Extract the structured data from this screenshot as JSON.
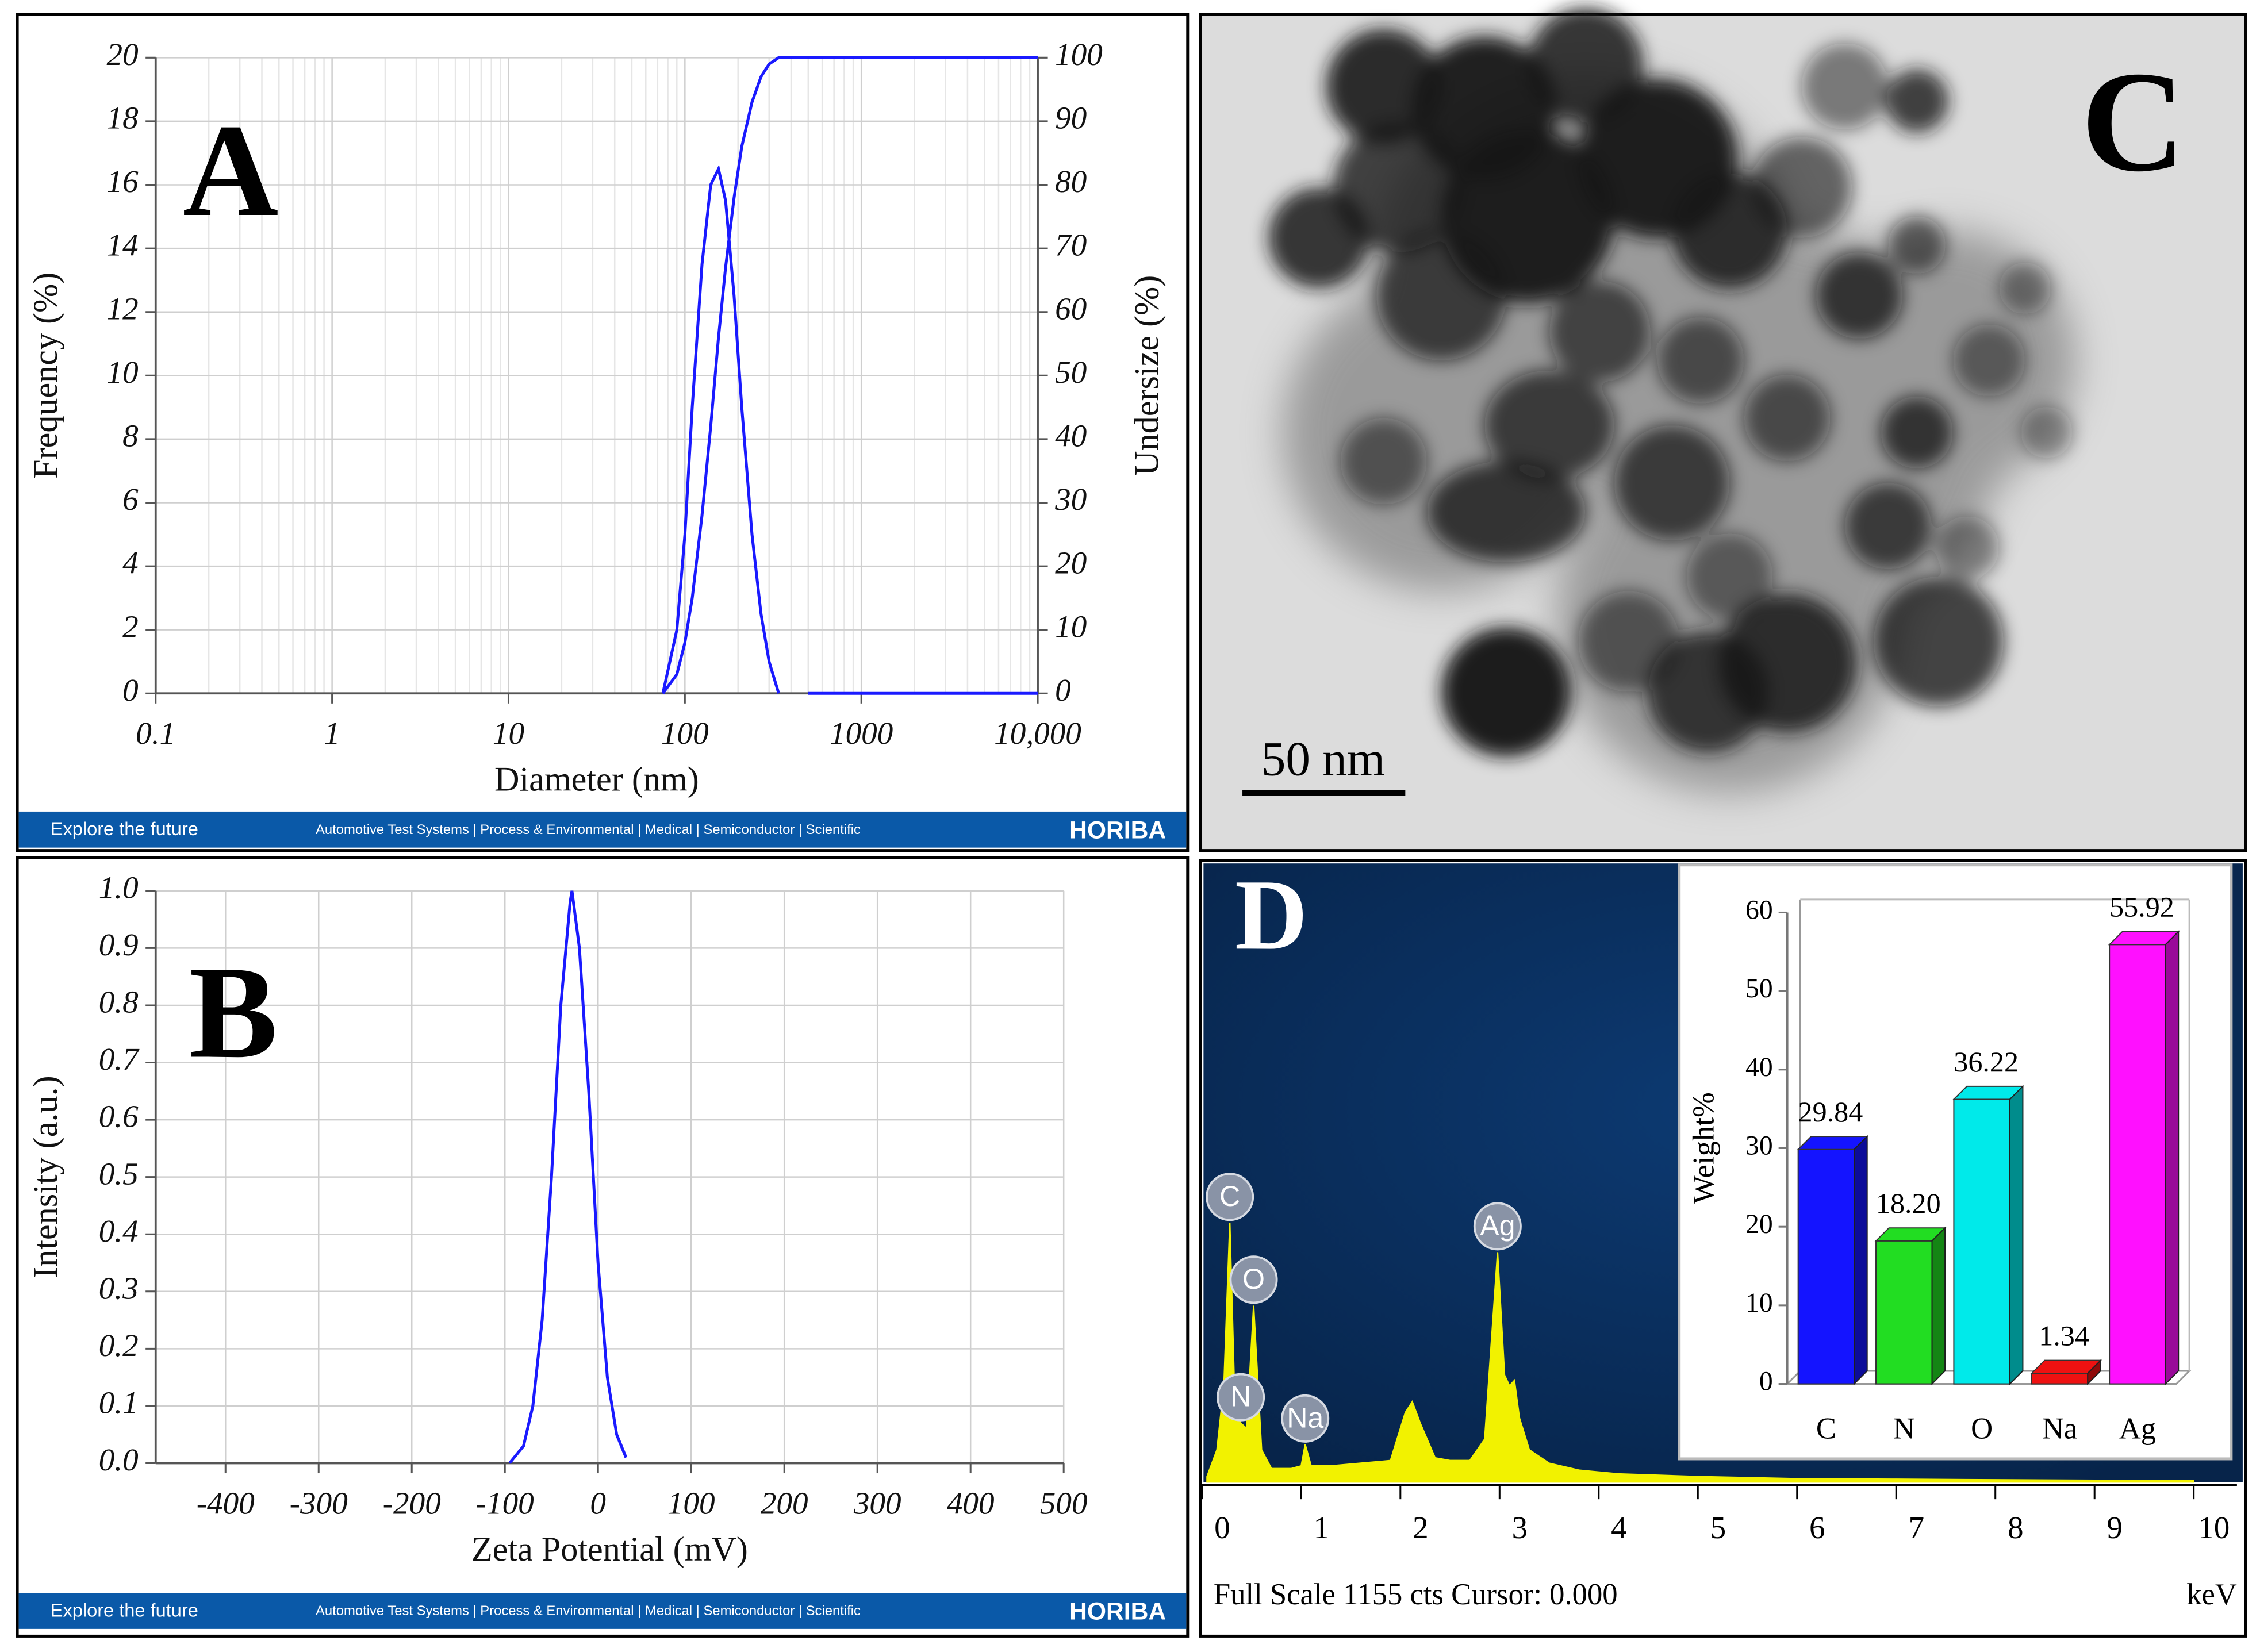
{
  "chart_data": [
    {
      "type": "line",
      "panel_label": "A",
      "xlabel": "Diameter (nm)",
      "ylabel": "Frequency (%)",
      "y2label": "Undersize (%)",
      "xlog": true,
      "grid": true,
      "x": [
        75,
        90,
        100,
        110,
        125,
        140,
        155,
        170,
        190,
        210,
        240,
        270,
        300,
        340,
        400,
        500,
        10000
      ],
      "series": [
        {
          "color": "#1a1aff",
          "values": [
            0,
            2,
            5,
            9,
            13.5,
            16,
            16.5,
            15.5,
            12.5,
            9,
            5,
            2.5,
            1,
            0,
            null,
            0,
            0
          ]
        },
        {
          "color": "#1a1aff",
          "axis": "y2",
          "values": [
            0,
            3,
            8,
            15,
            28,
            42,
            56,
            67,
            78,
            86,
            93,
            97,
            99,
            100,
            100,
            100,
            100
          ]
        }
      ],
      "xlim": [
        0.1,
        10000
      ],
      "xticks": [
        0.1,
        1,
        10,
        100,
        1000,
        {
          "value": 10000,
          "label": "10,000"
        }
      ],
      "ylim": [
        0,
        20
      ],
      "yticks": [
        0,
        2,
        4,
        6,
        8,
        10,
        12,
        14,
        16,
        18,
        20
      ],
      "y2lim": [
        0,
        100
      ],
      "y2ticks": [
        0,
        10,
        20,
        30,
        40,
        50,
        60,
        70,
        80,
        90,
        100
      ],
      "banner": {
        "left": "Explore the future",
        "middle": "Automotive Test Systems  |  Process & Environmental  |  Medical  |  Semiconductor  |  Scientific",
        "brand": "HORIBA"
      }
    },
    {
      "type": "line",
      "panel_label": "B",
      "xlabel": "Zeta Potential (mV)",
      "ylabel": "Intensity (a.u.)",
      "grid": true,
      "x": [
        -95,
        -80,
        -70,
        -60,
        -50,
        -40,
        -30,
        -28,
        -20,
        -10,
        0,
        10,
        20,
        30
      ],
      "series": [
        {
          "color": "#1a1aff",
          "values": [
            0,
            0.03,
            0.1,
            0.25,
            0.5,
            0.8,
            0.98,
            1,
            0.9,
            0.65,
            0.35,
            0.15,
            0.05,
            0.01
          ]
        }
      ],
      "xlim": [
        -475,
        500
      ],
      "xticks": [
        -400,
        -300,
        -200,
        -100,
        0,
        100,
        200,
        300,
        400,
        500
      ],
      "ylim": [
        0,
        1
      ],
      "yticks": [
        {
          "value": 0,
          "label": "0.0"
        },
        0.1,
        0.2,
        0.3,
        0.4,
        0.5,
        0.6,
        0.7,
        0.8,
        0.9,
        {
          "value": 1,
          "label": "1.0"
        }
      ],
      "banner": {
        "left": "Explore the future",
        "middle": "Automotive Test Systems  |  Process & Environmental  |  Medical  |  Semiconductor  |  Scientific",
        "brand": "HORIBA"
      }
    },
    {
      "type": "area",
      "panel_label": "D",
      "xlabel": "keV",
      "footer": "Full Scale 1155 cts Cursor: 0.000",
      "color": "#f2f200",
      "x": [
        0.05,
        0.15,
        0.22,
        0.28,
        0.33,
        0.39,
        0.45,
        0.52,
        0.6,
        0.7,
        0.9,
        1.0,
        1.04,
        1.1,
        1.3,
        1.6,
        1.9,
        2.05,
        2.12,
        2.2,
        2.35,
        2.5,
        2.7,
        2.85,
        2.98,
        3.05,
        3.1,
        3.15,
        3.2,
        3.3,
        3.5,
        3.8,
        4.2,
        5,
        6,
        7,
        8,
        9,
        10
      ],
      "values": [
        10,
        60,
        180,
        485,
        150,
        110,
        100,
        330,
        60,
        25,
        25,
        30,
        70,
        30,
        30,
        35,
        40,
        130,
        150,
        110,
        45,
        40,
        40,
        80,
        430,
        200,
        180,
        190,
        120,
        60,
        35,
        22,
        15,
        10,
        6,
        5,
        4,
        3,
        3
      ],
      "xlim": [
        0,
        10
      ],
      "xticks": [
        0,
        1,
        2,
        3,
        4,
        5,
        6,
        7,
        8,
        9,
        10
      ],
      "ylim": [
        0,
        1155
      ],
      "peak_labels": [
        {
          "label": "C",
          "x": 0.28
        },
        {
          "label": "N",
          "x": 0.39
        },
        {
          "label": "O",
          "x": 0.52
        },
        {
          "label": "Na",
          "x": 1.04
        },
        {
          "label": "Ag",
          "x": 2.98
        }
      ]
    },
    {
      "type": "bar",
      "ylabel": "Weight%",
      "categories": [
        "C",
        "N",
        "O",
        "Na",
        "Ag"
      ],
      "values": [
        29.84,
        18.2,
        36.22,
        1.34,
        55.92
      ],
      "value_labels": [
        "29.84",
        "18.20",
        "36.22",
        "1.34",
        "55.92"
      ],
      "colors": [
        "#1414ff",
        "#22dd22",
        "#00eaea",
        "#ee1111",
        "#ff10ff"
      ],
      "ylim": [
        0,
        60
      ],
      "yticks": [
        0,
        10,
        20,
        30,
        40,
        50,
        60
      ]
    }
  ],
  "image_panel": {
    "label": "C",
    "scale_bar": "50 nm"
  }
}
